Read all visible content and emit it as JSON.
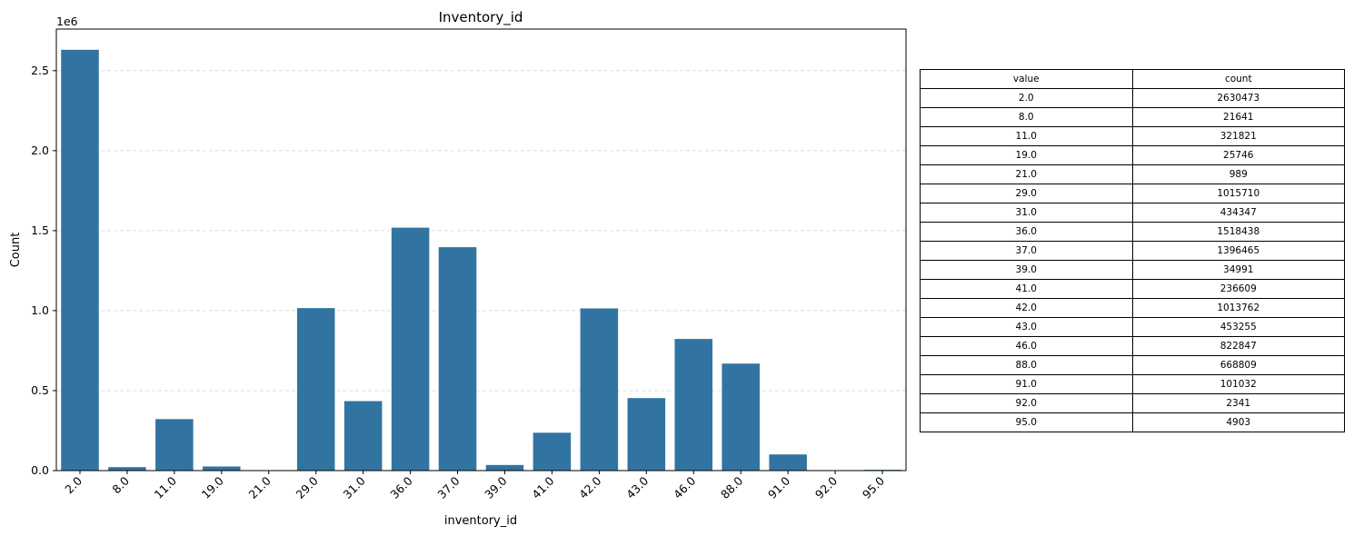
{
  "chart_data": {
    "type": "bar",
    "title": "Inventory_id",
    "xlabel": "inventory_id",
    "ylabel": "Count",
    "y_offset_label": "1e6",
    "ylim": [
      0,
      2.76
    ],
    "yticks": [
      "0.0",
      "0.5",
      "1.0",
      "1.5",
      "2.0",
      "2.5"
    ],
    "grid": "y-dashed",
    "bar_color": "#3274a1",
    "categories": [
      "2.0",
      "8.0",
      "11.0",
      "19.0",
      "21.0",
      "29.0",
      "31.0",
      "36.0",
      "37.0",
      "39.0",
      "41.0",
      "42.0",
      "43.0",
      "46.0",
      "88.0",
      "91.0",
      "92.0",
      "95.0"
    ],
    "values": [
      2630473,
      21641,
      321821,
      25746,
      989,
      1015710,
      434347,
      1518438,
      1396465,
      34991,
      236609,
      1013762,
      453255,
      822847,
      668809,
      101032,
      2341,
      4903
    ]
  },
  "table": {
    "headers": [
      "value",
      "count"
    ],
    "rows": [
      [
        "2.0",
        "2630473"
      ],
      [
        "8.0",
        "21641"
      ],
      [
        "11.0",
        "321821"
      ],
      [
        "19.0",
        "25746"
      ],
      [
        "21.0",
        "989"
      ],
      [
        "29.0",
        "1015710"
      ],
      [
        "31.0",
        "434347"
      ],
      [
        "36.0",
        "1518438"
      ],
      [
        "37.0",
        "1396465"
      ],
      [
        "39.0",
        "34991"
      ],
      [
        "41.0",
        "236609"
      ],
      [
        "42.0",
        "1013762"
      ],
      [
        "43.0",
        "453255"
      ],
      [
        "46.0",
        "822847"
      ],
      [
        "88.0",
        "668809"
      ],
      [
        "91.0",
        "101032"
      ],
      [
        "92.0",
        "2341"
      ],
      [
        "95.0",
        "4903"
      ]
    ]
  }
}
